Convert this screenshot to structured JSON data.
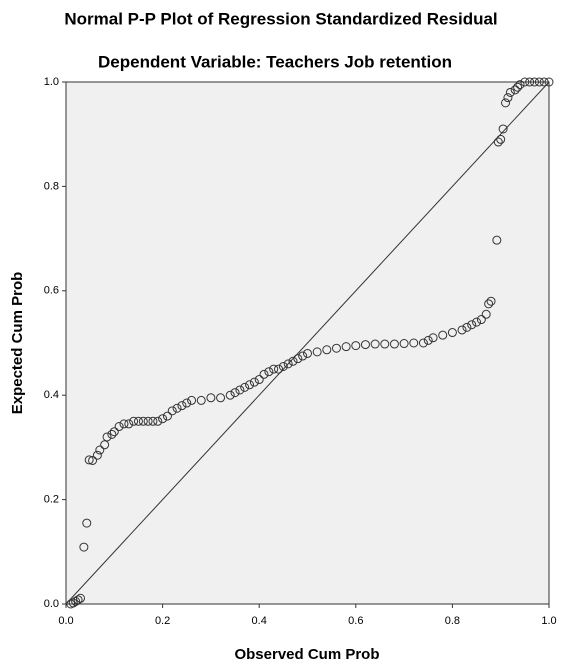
{
  "chart_data": {
    "type": "scatter",
    "title": "Normal P-P Plot of Regression Standardized Residual",
    "subtitle": "Dependent Variable: Teachers Job retention",
    "x_label": "Observed Cum Prob",
    "y_label": "Expected Cum Prob",
    "xlim": [
      0,
      1
    ],
    "ylim": [
      0,
      1
    ],
    "xticks": [
      {
        "value": 0,
        "label": "0.0"
      },
      0.2,
      0.4,
      0.6,
      0.8,
      {
        "value": 1,
        "label": "1.0"
      }
    ],
    "yticks": [
      {
        "value": 0,
        "label": "0.0"
      },
      0.2,
      0.4,
      0.6,
      0.8,
      {
        "value": 1,
        "label": "1.0"
      }
    ],
    "color": "#333333",
    "x": [
      0.01,
      0.015,
      0.02,
      0.025,
      0.03,
      0.037,
      0.043,
      0.048,
      0.055,
      0.065,
      0.07,
      0.08,
      0.085,
      0.095,
      0.1,
      0.11,
      0.12,
      0.13,
      0.14,
      0.15,
      0.16,
      0.17,
      0.18,
      0.19,
      0.2,
      0.21,
      0.22,
      0.23,
      0.24,
      0.25,
      0.26,
      0.28,
      0.3,
      0.32,
      0.34,
      0.35,
      0.36,
      0.37,
      0.38,
      0.39,
      0.4,
      0.41,
      0.42,
      0.43,
      0.44,
      0.45,
      0.46,
      0.47,
      0.48,
      0.49,
      0.5,
      0.52,
      0.54,
      0.56,
      0.58,
      0.6,
      0.62,
      0.64,
      0.66,
      0.68,
      0.7,
      0.72,
      0.74,
      0.75,
      0.76,
      0.78,
      0.8,
      0.82,
      0.83,
      0.84,
      0.85,
      0.86,
      0.87,
      0.875,
      0.88,
      0.892,
      0.895,
      0.9,
      0.905,
      0.91,
      0.915,
      0.92,
      0.93,
      0.935,
      0.94,
      0.95,
      0.96,
      0.97,
      0.98,
      0.99,
      1.0
    ],
    "values": [
      0.0,
      0.002,
      0.005,
      0.008,
      0.011,
      0.109,
      0.155,
      0.276,
      0.275,
      0.285,
      0.295,
      0.305,
      0.32,
      0.325,
      0.33,
      0.34,
      0.345,
      0.345,
      0.35,
      0.35,
      0.35,
      0.35,
      0.35,
      0.35,
      0.355,
      0.36,
      0.37,
      0.375,
      0.38,
      0.385,
      0.39,
      0.39,
      0.395,
      0.395,
      0.4,
      0.405,
      0.41,
      0.415,
      0.42,
      0.425,
      0.43,
      0.44,
      0.445,
      0.45,
      0.45,
      0.455,
      0.46,
      0.465,
      0.47,
      0.475,
      0.48,
      0.483,
      0.487,
      0.49,
      0.493,
      0.495,
      0.497,
      0.498,
      0.498,
      0.498,
      0.499,
      0.5,
      0.5,
      0.505,
      0.51,
      0.515,
      0.52,
      0.525,
      0.53,
      0.535,
      0.54,
      0.545,
      0.555,
      0.575,
      0.58,
      0.697,
      0.885,
      0.89,
      0.91,
      0.96,
      0.97,
      0.98,
      0.985,
      0.99,
      0.995,
      1.0,
      1.0,
      1.0,
      1.0,
      1.0,
      1.0
    ]
  }
}
